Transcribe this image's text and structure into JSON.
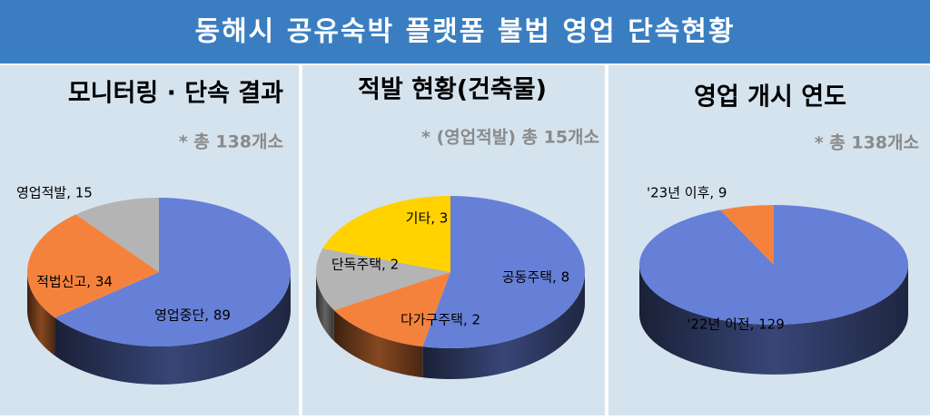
{
  "title": "동해시 공유숙박 플랫폼 불법 영업 단속현황",
  "chart_data": [
    {
      "type": "pie",
      "title": "모니터링 · 단속 결과",
      "subtitle": "* 총 138개소",
      "values": [
        89,
        34,
        15
      ],
      "value_labels": [
        "영업중단, 89",
        "적법신고, 34",
        "영업적발, 15"
      ],
      "colors": [
        "#6680d8",
        "#f5823c",
        "#b4b4b4"
      ]
    },
    {
      "type": "pie",
      "title": "적발 현황(건축물)",
      "subtitle": "* (영업적발) 총 15개소",
      "values": [
        8,
        2,
        2,
        3
      ],
      "value_labels": [
        "공동주택, 8",
        "다가구주택, 2",
        "단독주택, 2",
        "기타, 3"
      ],
      "colors": [
        "#6680d8",
        "#f5823c",
        "#b4b4b4",
        "#ffd200"
      ]
    },
    {
      "type": "pie",
      "title": "영업 개시 연도",
      "subtitle": "* 총 138개소",
      "values": [
        129,
        9
      ],
      "value_labels": [
        "'22년 이전, 129",
        "'23년 이후, 9"
      ],
      "colors": [
        "#6680d8",
        "#f5823c"
      ]
    }
  ]
}
